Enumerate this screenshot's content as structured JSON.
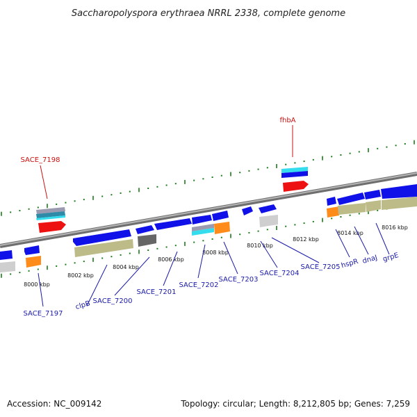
{
  "title": "Saccharopolyspora erythraea NRRL 2338, complete genome",
  "footer": {
    "accession": "Accession: NC_009142",
    "topology": "Topology: circular; Length: 8,212,805 bp; Genes: 7,259"
  },
  "colors": {
    "backbone": "#8a8a8a",
    "tick": "#1a7a1a",
    "gene_blue": "#1010e8",
    "gene_olive": "#bdbb88",
    "gene_orange": "#ff8c1a",
    "gene_red": "#ee1111",
    "gene_cyan": "#33ddee",
    "gene_gray": "#cfcfcf",
    "gene_dark": "#666666",
    "label_blue": "#1a1aa8",
    "label_red": "#cc1111"
  },
  "scale_labels": [
    "8000 kbp",
    "8002 kbp",
    "8004 kbp",
    "8006 kbp",
    "8008 kbp",
    "8010 kbp",
    "8012 kbp",
    "8014 kbp",
    "8016 kbp"
  ],
  "gene_labels": {
    "SACE_7198": "SACE_7198",
    "fhbA": "fhbA",
    "SACE_7197": "SACE_7197",
    "clpB": "clpB",
    "SACE_7200": "SACE_7200",
    "SACE_7201": "SACE_7201",
    "SACE_7202": "SACE_7202",
    "SACE_7203": "SACE_7203",
    "SACE_7204": "SACE_7204",
    "SACE_7205": "SACE_7205",
    "hspR": "hspR",
    "dnaJ": "dnaJ",
    "grpE": "grpE"
  }
}
